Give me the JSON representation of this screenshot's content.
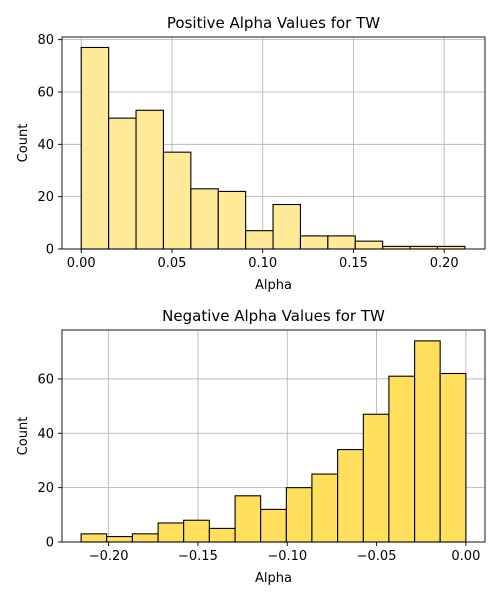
{
  "chart_data": [
    {
      "type": "bar",
      "title": "Positive Alpha Values for TW",
      "xlabel": "Alpha",
      "ylabel": "Count",
      "bin_edges": [
        0.0,
        0.0151,
        0.0302,
        0.0453,
        0.0604,
        0.0755,
        0.0906,
        0.1057,
        0.1208,
        0.1359,
        0.151,
        0.1661,
        0.1812,
        0.1963,
        0.2114
      ],
      "values": [
        77,
        50,
        53,
        37,
        23,
        22,
        7,
        17,
        5,
        5,
        3,
        1,
        1,
        1
      ],
      "xlim": [
        -0.0106,
        0.2225
      ],
      "ylim": [
        0,
        81
      ],
      "xticks": [
        0.0,
        0.05,
        0.1,
        0.15,
        0.2
      ],
      "xtick_labels": [
        "0.00",
        "0.05",
        "0.10",
        "0.15",
        "0.20"
      ],
      "yticks": [
        0,
        20,
        40,
        60,
        80
      ],
      "ytick_labels": [
        "0",
        "20",
        "40",
        "60",
        "80"
      ],
      "grid": true,
      "bar_color": "#ffea99",
      "edge_color": "#000000"
    },
    {
      "type": "bar",
      "title": "Negative Alpha Values for TW",
      "xlabel": "Alpha",
      "ylabel": "Count",
      "bin_edges": [
        -0.2154,
        -0.2011,
        -0.1867,
        -0.1723,
        -0.158,
        -0.1436,
        -0.1292,
        -0.1149,
        -0.1005,
        -0.0862,
        -0.0718,
        -0.0574,
        -0.0431,
        -0.0287,
        -0.0144,
        0.0
      ],
      "values": [
        3,
        2,
        3,
        7,
        8,
        5,
        17,
        12,
        20,
        25,
        34,
        47,
        61,
        74,
        62
      ],
      "xlim": [
        -0.2261,
        0.0107
      ],
      "ylim": [
        0,
        78
      ],
      "xticks": [
        -0.2,
        -0.15,
        -0.1,
        -0.05,
        0.0
      ],
      "xtick_labels": [
        "−0.20",
        "−0.15",
        "−0.10",
        "−0.05",
        "0.00"
      ],
      "yticks": [
        0,
        20,
        40,
        60
      ],
      "ytick_labels": [
        "0",
        "20",
        "40",
        "60"
      ],
      "grid": true,
      "bar_color": "#ffdf5c",
      "edge_color": "#000000"
    }
  ]
}
